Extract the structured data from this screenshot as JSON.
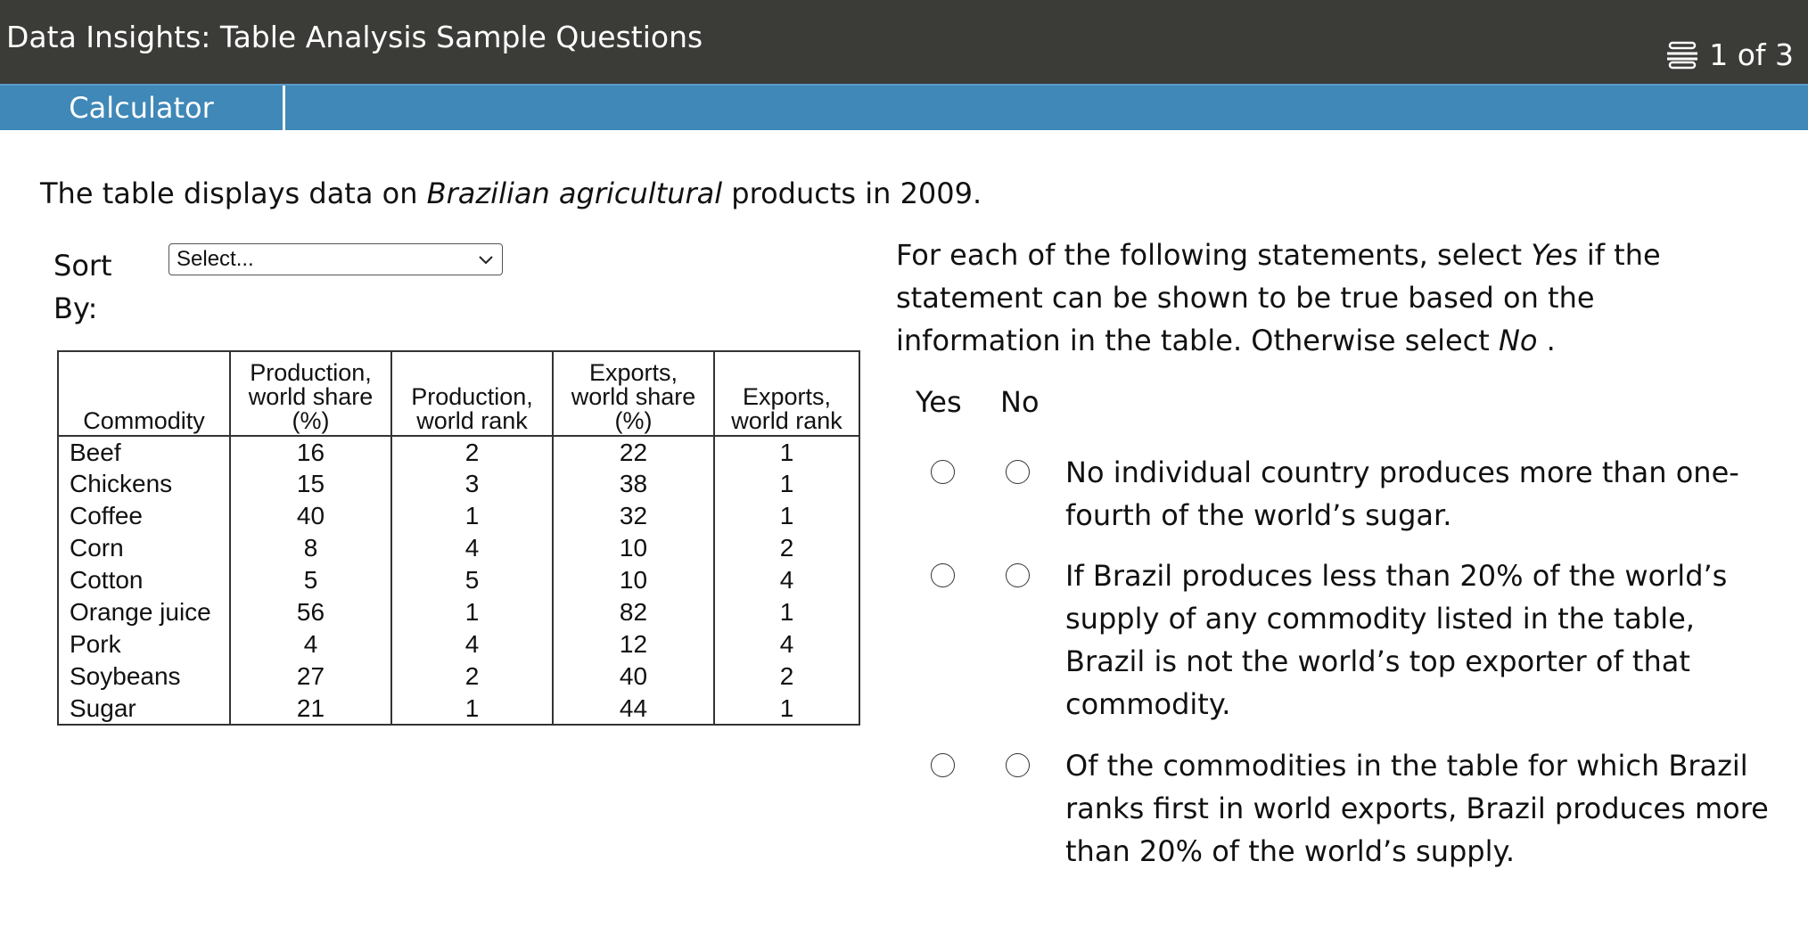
{
  "header": {
    "title": "Data Insights: Table Analysis Sample Questions",
    "page_counter": "1 of 3",
    "counter_icon": "stack-icon"
  },
  "toolbar": {
    "calculator_label": "Calculator"
  },
  "intro": {
    "before": "The table displays data on ",
    "italic": "Brazilian agricultural",
    "after": " products in 2009."
  },
  "sort": {
    "label": "Sort By:",
    "selected": "Select..."
  },
  "table": {
    "headers": [
      "Commodity",
      "Production, world share (%)",
      "Production, world rank",
      "Exports, world share (%)",
      "Exports, world rank"
    ],
    "header_lines": [
      [
        "Commodity"
      ],
      [
        "Production,",
        "world share",
        "(%)"
      ],
      [
        "Production,",
        "world rank"
      ],
      [
        "Exports,",
        "world share",
        "(%)"
      ],
      [
        "Exports,",
        "world rank"
      ]
    ],
    "rows": [
      [
        "Beef",
        "16",
        "2",
        "22",
        "1"
      ],
      [
        "Chickens",
        "15",
        "3",
        "38",
        "1"
      ],
      [
        "Coffee",
        "40",
        "1",
        "32",
        "1"
      ],
      [
        "Corn",
        "8",
        "4",
        "10",
        "2"
      ],
      [
        "Cotton",
        "5",
        "5",
        "10",
        "4"
      ],
      [
        "Orange juice",
        "56",
        "1",
        "82",
        "1"
      ],
      [
        "Pork",
        "4",
        "4",
        "12",
        "4"
      ],
      [
        "Soybeans",
        "27",
        "2",
        "40",
        "2"
      ],
      [
        "Sugar",
        "21",
        "1",
        "44",
        "1"
      ]
    ]
  },
  "instructions": {
    "part1": "For each of the following statements, select ",
    "yes": "Yes",
    "part2": " if the statement can be shown to be true based on the information in the table. Otherwise select ",
    "no": "No",
    "part3": " ."
  },
  "columns": {
    "yes": "Yes",
    "no": "No"
  },
  "statements": [
    "No individual country produces more than one-fourth of the world’s sugar.",
    "If Brazil produces less than 20% of the world’s supply of any commodity listed in the table, Brazil is not the world’s top exporter of that commodity.",
    "Of the commodities in the table for which Brazil ranks first in world exports, Brazil produces more than 20% of the world’s supply."
  ]
}
